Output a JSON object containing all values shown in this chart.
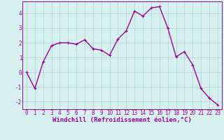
{
  "x": [
    0,
    1,
    2,
    3,
    4,
    5,
    6,
    7,
    8,
    9,
    10,
    11,
    12,
    13,
    14,
    15,
    16,
    17,
    18,
    19,
    20,
    21,
    22,
    23
  ],
  "y": [
    0,
    -1.1,
    0.7,
    1.8,
    2.0,
    2.0,
    1.9,
    2.2,
    1.6,
    1.5,
    1.15,
    2.25,
    2.8,
    4.15,
    3.8,
    4.35,
    4.45,
    3.0,
    1.05,
    1.4,
    0.5,
    -1.1,
    -1.75,
    -2.2
  ],
  "line_color": "#990099",
  "marker": "+",
  "marker_size": 3,
  "linewidth": 1.0,
  "bg_color": "#d6f0f0",
  "grid_color": "#b0d8d8",
  "xlabel": "Windchill (Refroidissement éolien,°C)",
  "xlabel_fontsize": 6.5,
  "tick_fontsize": 5.5,
  "ylim": [
    -2.5,
    4.8
  ],
  "xlim": [
    -0.5,
    23.5
  ],
  "yticks": [
    -2,
    -1,
    0,
    1,
    2,
    3,
    4
  ],
  "xticks": [
    0,
    1,
    2,
    3,
    4,
    5,
    6,
    7,
    8,
    9,
    10,
    11,
    12,
    13,
    14,
    15,
    16,
    17,
    18,
    19,
    20,
    21,
    22,
    23
  ]
}
